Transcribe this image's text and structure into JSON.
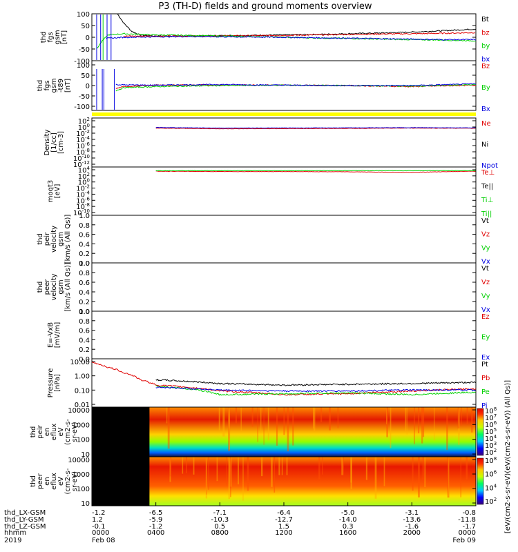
{
  "title": "P3 (TH-D) fields and ground moments overview",
  "colors": {
    "black": "#000000",
    "red": "#e00000",
    "green": "#00d000",
    "blue": "#0000e0",
    "yellow": "#ffff00",
    "frame": "#000000"
  },
  "panels": [
    {
      "id": "fgs",
      "ylabel": [
        "thd",
        "fgs",
        "gsm",
        "[nT]"
      ],
      "ticks": [
        "100",
        "50",
        "0",
        "-50",
        "-100"
      ],
      "ytick_values": [
        100,
        50,
        0,
        -50,
        -100
      ],
      "ylim": [
        -100,
        100
      ],
      "legend": [
        {
          "text": "Bt",
          "color": "#000000"
        },
        {
          "text": "bz",
          "color": "#e00000"
        },
        {
          "text": "by",
          "color": "#00d000"
        },
        {
          "text": "bx",
          "color": "#0000e0"
        }
      ]
    },
    {
      "id": "fgs_sm",
      "ylabel": [
        "thd",
        "fgs",
        "gsm",
        "-t89",
        "[nT]"
      ],
      "ticks": [
        "100",
        "50",
        "0",
        "-50",
        "-100"
      ],
      "ytick_values": [
        100,
        50,
        0,
        -50,
        -100
      ],
      "ylim": [
        -120,
        120
      ],
      "legend": [
        {
          "text": "Bz",
          "color": "#e00000"
        },
        {
          "text": "By",
          "color": "#00d000"
        },
        {
          "text": "Bx",
          "color": "#0000e0"
        }
      ]
    },
    {
      "id": "density",
      "ylabel": [
        "Density",
        "[1/cc]",
        "[cm-3]"
      ],
      "ticks": [
        "10^2",
        "10^0",
        "10^-2",
        "10^-4",
        "10^-6",
        "10^-8",
        "10^-10",
        "10^-12"
      ],
      "log": true,
      "legend": [
        {
          "text": "Ne",
          "color": "#e00000"
        },
        {
          "text": "Ni",
          "color": "#000000"
        },
        {
          "text": "Npot",
          "color": "#0000e0"
        }
      ]
    },
    {
      "id": "temp",
      "ylabel": [
        "moqt3",
        "[eV]"
      ],
      "ticks": [
        "10^4",
        "10^2",
        "10^0",
        "10^-2",
        "10^-4",
        "10^-6",
        "10^-8",
        "10^-10"
      ],
      "log": true,
      "legend": [
        {
          "text": "Te⊥",
          "color": "#e00000"
        },
        {
          "text": "Te||",
          "color": "#000000"
        },
        {
          "text": "Ti⊥",
          "color": "#00d000"
        },
        {
          "text": "Ti||",
          "color": "#00d000"
        }
      ]
    },
    {
      "id": "peir_v",
      "ylabel": [
        "thd",
        "peir",
        "velocity",
        "gsm",
        "[km/s (All Qs)]"
      ],
      "ticks": [
        "1.0",
        "0.8",
        "0.6",
        "0.4",
        "0.2",
        "0.0"
      ],
      "ytick_values": [
        1.0,
        0.8,
        0.6,
        0.4,
        0.2,
        0.0
      ],
      "ylim": [
        0,
        1
      ],
      "legend": [
        {
          "text": "Vt",
          "color": "#000000"
        },
        {
          "text": "Vz",
          "color": "#e00000"
        },
        {
          "text": "Vy",
          "color": "#00d000"
        },
        {
          "text": "Vx",
          "color": "#0000e0"
        }
      ]
    },
    {
      "id": "peer_v",
      "ylabel": [
        "thd",
        "peer",
        "velocity",
        "gsm",
        "[km/s (All Qs)]"
      ],
      "ticks": [
        "1.0",
        "0.8",
        "0.6",
        "0.4",
        "0.2",
        "0.0"
      ],
      "ytick_values": [
        1.0,
        0.8,
        0.6,
        0.4,
        0.2,
        0.0
      ],
      "ylim": [
        0,
        1
      ],
      "legend": [
        {
          "text": "Vt",
          "color": "#000000"
        },
        {
          "text": "Vz",
          "color": "#e00000"
        },
        {
          "text": "Vy",
          "color": "#00d000"
        },
        {
          "text": "Vx",
          "color": "#0000e0"
        }
      ]
    },
    {
      "id": "efield",
      "ylabel": [
        "E=-VxB",
        "[mV/m]"
      ],
      "ticks": [
        "1.0",
        "0.8",
        "0.6",
        "0.4",
        "0.2",
        "0.0"
      ],
      "ytick_values": [
        1.0,
        0.8,
        0.6,
        0.4,
        0.2,
        0.0
      ],
      "ylim": [
        0,
        1
      ],
      "legend": [
        {
          "text": "Ez",
          "color": "#e00000"
        },
        {
          "text": "Ey",
          "color": "#00d000"
        },
        {
          "text": "Ex",
          "color": "#0000e0"
        }
      ]
    },
    {
      "id": "pressure",
      "ylabel": [
        "Pressure",
        "[nPa]"
      ],
      "ticks": [
        "10.00",
        "1.00",
        "0.10",
        "0.01"
      ],
      "log": true,
      "legend": [
        {
          "text": "Pt",
          "color": "#000000"
        },
        {
          "text": "Pb",
          "color": "#e00000"
        },
        {
          "text": "Pe",
          "color": "#00d000"
        },
        {
          "text": "Pi",
          "color": "#0000e0"
        }
      ]
    },
    {
      "id": "peir_en",
      "ylabel": [
        "thd",
        "peir",
        "en",
        "eflux",
        "eV",
        "(cm2-s-",
        "sr-eV)"
      ],
      "ticks": [
        "10000",
        "1000",
        "100",
        "10"
      ],
      "log": true
    },
    {
      "id": "peer_en",
      "ylabel": [
        "thd",
        "peer",
        "en",
        "eflux",
        "eV",
        "(cm2-s-",
        "sr-eV)"
      ],
      "ticks": [
        "10000",
        "1000",
        "100",
        "10"
      ],
      "log": true
    }
  ],
  "colorbar": {
    "label": "[eV/(cm2-s-sr-eV)(eV/(cm2-s-sr-eV)) (All Qs)]",
    "ticks_upper": [
      "10^8",
      "10^7",
      "10^6",
      "10^5",
      "10^4",
      "10^3",
      "10^2"
    ],
    "ticks_lower": [
      "10^8",
      "10^6",
      "10^4",
      "10^2"
    ]
  },
  "xaxis": {
    "rows": [
      {
        "label": "thd_LX-GSM",
        "values": [
          "-1.2",
          "-6.5",
          "-7.1",
          "-6.4",
          "-5.0",
          "-3.1",
          "-0.8"
        ]
      },
      {
        "label": "thd_LY-GSM",
        "values": [
          "1.2",
          "-5.9",
          "-10.3",
          "-12.7",
          "-14.0",
          "-13.6",
          "-11.8"
        ]
      },
      {
        "label": "thd_LZ-GSM",
        "values": [
          "-0.1",
          "-1.2",
          "0.5",
          "1.5",
          "0.3",
          "-1.6",
          "-1.7"
        ]
      },
      {
        "label": "hhmm",
        "values": [
          "0000",
          "0400",
          "0800",
          "1200",
          "1600",
          "2000",
          "0000"
        ]
      }
    ],
    "year": "2019",
    "date_start": "Feb 08",
    "date_end": "Feb 09"
  },
  "chart_data": {
    "type": "line",
    "title": "P3 (TH-D) fields and ground moments overview",
    "x_label": "hhmm",
    "x_ticks": [
      "0000",
      "0400",
      "0800",
      "1200",
      "1600",
      "2000",
      "0000"
    ],
    "x_range_hours": [
      0,
      24
    ],
    "start_date": "2019 Feb 08",
    "end_date": "Feb 09",
    "panels": [
      {
        "name": "fgs gsm [nT]",
        "ylim": [
          -100,
          100
        ],
        "series": [
          {
            "name": "Bt",
            "x": [
              1.6,
              2.0,
              2.5,
              3.0,
              4,
              6,
              8,
              10,
              12,
              14,
              16,
              18,
              20,
              22,
              24
            ],
            "y": [
              100,
              60,
              25,
              10,
              5,
              6,
              7,
              8,
              10,
              12,
              15,
              18,
              22,
              28,
              35
            ]
          },
          {
            "name": "bz",
            "x": [
              2,
              4,
              6,
              8,
              10,
              12,
              14,
              16,
              18,
              20,
              22,
              24
            ],
            "y": [
              5,
              5,
              5,
              6,
              7,
              8,
              10,
              12,
              14,
              15,
              17,
              20
            ]
          },
          {
            "name": "by",
            "x": [
              0.3,
              0.6,
              1.0,
              2,
              4,
              6,
              8,
              10,
              12,
              14,
              16,
              18,
              20,
              22,
              24
            ],
            "y": [
              -50,
              -20,
              10,
              15,
              10,
              8,
              5,
              3,
              0,
              -3,
              -5,
              -8,
              -10,
              -12,
              -15
            ]
          },
          {
            "name": "bx",
            "x": [
              0.9,
              2,
              4,
              6,
              8,
              10,
              12,
              14,
              16,
              18,
              20,
              22,
              24
            ],
            "y": [
              -5,
              0,
              2,
              3,
              2,
              1,
              0,
              -2,
              -4,
              -6,
              -8,
              -10,
              -10
            ]
          }
        ]
      },
      {
        "name": "fgs gsm -t89 [nT]",
        "ylim": [
          -120,
          120
        ],
        "series": [
          {
            "name": "Bz",
            "x": [
              1.5,
              2,
              4,
              8,
              12,
              16,
              20,
              24
            ],
            "y": [
              -15,
              -5,
              2,
              3,
              2,
              0,
              -5,
              2
            ]
          },
          {
            "name": "By",
            "x": [
              1.5,
              2,
              4,
              8,
              12,
              16,
              20,
              24
            ],
            "y": [
              -25,
              -10,
              -5,
              0,
              2,
              0,
              -3,
              5
            ]
          },
          {
            "name": "Bx",
            "x": [
              1.5,
              2,
              4,
              8,
              12,
              16,
              20,
              24
            ],
            "y": [
              5,
              3,
              2,
              5,
              2,
              0,
              0,
              8
            ]
          }
        ]
      },
      {
        "name": "Density [1/cc]",
        "log": true,
        "series": [
          {
            "name": "Ne",
            "x": [
              4,
              8,
              12,
              16,
              20,
              24
            ],
            "y": [
              0.5,
              0.3,
              0.35,
              0.4,
              0.5,
              0.45
            ]
          },
          {
            "name": "Npot",
            "x": [
              4,
              8,
              12,
              16,
              20,
              24
            ],
            "y": [
              0.8,
              0.5,
              0.55,
              0.6,
              0.7,
              0.6
            ]
          }
        ]
      },
      {
        "name": "moqt3 [eV]",
        "log": true,
        "series": [
          {
            "name": "Te⊥",
            "x": [
              4,
              8,
              12,
              16,
              20,
              24
            ],
            "y": [
              4000,
              3000,
              3000,
              2500,
              1500,
              4000
            ]
          },
          {
            "name": "Ti⊥",
            "x": [
              4,
              8,
              12,
              16,
              20,
              24
            ],
            "y": [
              6000,
              6000,
              6000,
              6000,
              6000,
              6000
            ]
          }
        ]
      },
      {
        "name": "Pressure [nPa]",
        "log": true,
        "series": [
          {
            "name": "Pt",
            "x": [
              4,
              6,
              8,
              12,
              16,
              20,
              24
            ],
            "y": [
              0.8,
              0.6,
              0.4,
              0.3,
              0.35,
              0.4,
              0.5
            ]
          },
          {
            "name": "Pb",
            "x": [
              0,
              1,
              2,
              3,
              4,
              8,
              12,
              16,
              20,
              24
            ],
            "y": [
              20,
              8,
              3,
              0.8,
              0.3,
              0.1,
              0.05,
              0.06,
              0.1,
              0.15
            ]
          },
          {
            "name": "Pe",
            "x": [
              4,
              8,
              12,
              16,
              20,
              24
            ],
            "y": [
              0.25,
              0.05,
              0.06,
              0.07,
              0.05,
              0.08
            ]
          },
          {
            "name": "Pi",
            "x": [
              4,
              8,
              12,
              16,
              20,
              24
            ],
            "y": [
              0.2,
              0.12,
              0.1,
              0.1,
              0.12,
              0.12
            ]
          }
        ]
      }
    ]
  }
}
